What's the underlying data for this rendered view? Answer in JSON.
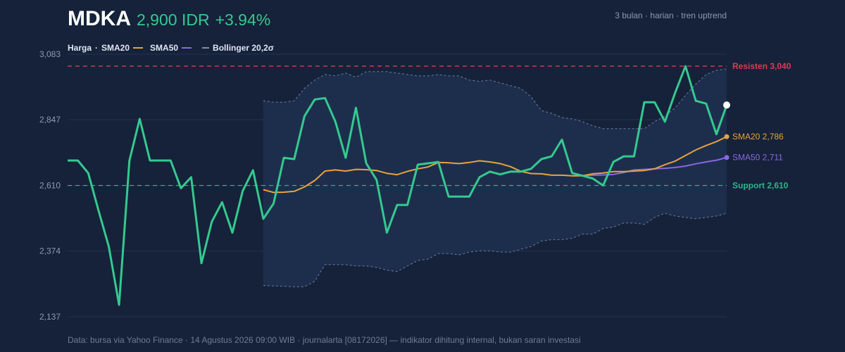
{
  "header": {
    "ticker": "MDKA",
    "price": "2,900 IDR",
    "change": "+3.94%",
    "meta": "3 bulan · harian · tren uptrend"
  },
  "legend": {
    "price": "Harga",
    "sma20": "SMA20",
    "sma50": "SMA50",
    "bollinger": "Bollinger 20,2σ"
  },
  "footer": "Data: bursa via Yahoo Finance · 14 Agustus 2026 09:00 WIB · journalarta [08172026] — indikator dihitung internal, bukan saran investasi",
  "colors": {
    "background": "#15223a",
    "price": "#35c98f",
    "sma20": "#e8a23c",
    "sma50": "#8b67e0",
    "resistance": "#e0394f",
    "support": "#2fb48c",
    "band_fill": "#1e3050",
    "band_line": "#6a7c9c",
    "grid": "#22324d"
  },
  "chart_data": {
    "type": "line",
    "ylim": [
      2137,
      3083
    ],
    "yticks": [
      "3,083",
      "2,847",
      "2,610",
      "2,374",
      "2,137"
    ],
    "ytick_values": [
      3083,
      2847,
      2610,
      2374,
      2137
    ],
    "grid": true,
    "levels": [
      {
        "name": "resistance",
        "label": "Resisten 3,040",
        "value": 3040
      },
      {
        "name": "support",
        "label": "Support 2,610",
        "value": 2610
      }
    ],
    "end_labels": {
      "sma20": "SMA20 2,786",
      "sma50": "SMA50 2,711"
    },
    "series": [
      {
        "name": "Harga",
        "values": [
          2700,
          2700,
          2655,
          2520,
          2390,
          2180,
          2700,
          2850,
          2700,
          2700,
          2700,
          2600,
          2640,
          2330,
          2480,
          2550,
          2440,
          2590,
          2665,
          2490,
          2545,
          2710,
          2705,
          2860,
          2920,
          2925,
          2840,
          2710,
          2890,
          2690,
          2630,
          2440,
          2540,
          2540,
          2685,
          2690,
          2695,
          2570,
          2570,
          2570,
          2640,
          2660,
          2650,
          2660,
          2660,
          2670,
          2705,
          2715,
          2775,
          2655,
          2645,
          2635,
          2610,
          2695,
          2715,
          2715,
          2910,
          2910,
          2840,
          2945,
          3040,
          2915,
          2905,
          2795,
          2900
        ]
      },
      {
        "name": "SMA20",
        "values": [
          null,
          null,
          null,
          null,
          null,
          null,
          null,
          null,
          null,
          null,
          null,
          null,
          null,
          null,
          null,
          null,
          null,
          null,
          null,
          2595,
          2585,
          2586,
          2589,
          2605,
          2628,
          2662,
          2666,
          2662,
          2668,
          2667,
          2664,
          2654,
          2649,
          2661,
          2670,
          2677,
          2693,
          2692,
          2689,
          2693,
          2699,
          2695,
          2689,
          2678,
          2661,
          2653,
          2652,
          2647,
          2647,
          2645,
          2645,
          2652,
          2655,
          2660,
          2660,
          2662,
          2664,
          2670,
          2685,
          2698,
          2718,
          2738,
          2754,
          2768,
          2786
        ]
      },
      {
        "name": "SMA50",
        "values": [
          null,
          null,
          null,
          null,
          null,
          null,
          null,
          null,
          null,
          null,
          null,
          null,
          null,
          null,
          null,
          null,
          null,
          null,
          null,
          null,
          null,
          null,
          null,
          null,
          null,
          null,
          null,
          null,
          null,
          null,
          null,
          null,
          null,
          null,
          null,
          null,
          null,
          null,
          null,
          null,
          null,
          null,
          null,
          null,
          null,
          null,
          null,
          null,
          null,
          2645,
          2646,
          2647,
          2648,
          2650,
          2657,
          2666,
          2668,
          2670,
          2672,
          2675,
          2680,
          2688,
          2695,
          2701,
          2711
        ]
      },
      {
        "name": "Bollinger upper",
        "values": [
          null,
          null,
          null,
          null,
          null,
          null,
          null,
          null,
          null,
          null,
          null,
          null,
          null,
          null,
          null,
          null,
          null,
          null,
          null,
          2915,
          2910,
          2910,
          2915,
          2960,
          2990,
          3010,
          3005,
          3015,
          3000,
          3020,
          3020,
          3020,
          3015,
          3010,
          3005,
          3005,
          3010,
          3005,
          3005,
          2990,
          2985,
          2990,
          2980,
          2970,
          2960,
          2930,
          2880,
          2870,
          2855,
          2850,
          2840,
          2825,
          2815,
          2815,
          2815,
          2815,
          2815,
          2840,
          2860,
          2890,
          2935,
          2975,
          3010,
          3025,
          3030
        ]
      },
      {
        "name": "Bollinger lower",
        "values": [
          null,
          null,
          null,
          null,
          null,
          null,
          null,
          null,
          null,
          null,
          null,
          null,
          null,
          null,
          null,
          null,
          null,
          null,
          null,
          2250,
          2248,
          2247,
          2245,
          2245,
          2265,
          2325,
          2325,
          2325,
          2320,
          2320,
          2315,
          2305,
          2300,
          2320,
          2340,
          2345,
          2365,
          2365,
          2360,
          2370,
          2375,
          2375,
          2370,
          2370,
          2380,
          2390,
          2410,
          2415,
          2415,
          2420,
          2435,
          2435,
          2455,
          2460,
          2475,
          2475,
          2470,
          2495,
          2510,
          2500,
          2495,
          2490,
          2495,
          2500,
          2510
        ]
      }
    ]
  }
}
